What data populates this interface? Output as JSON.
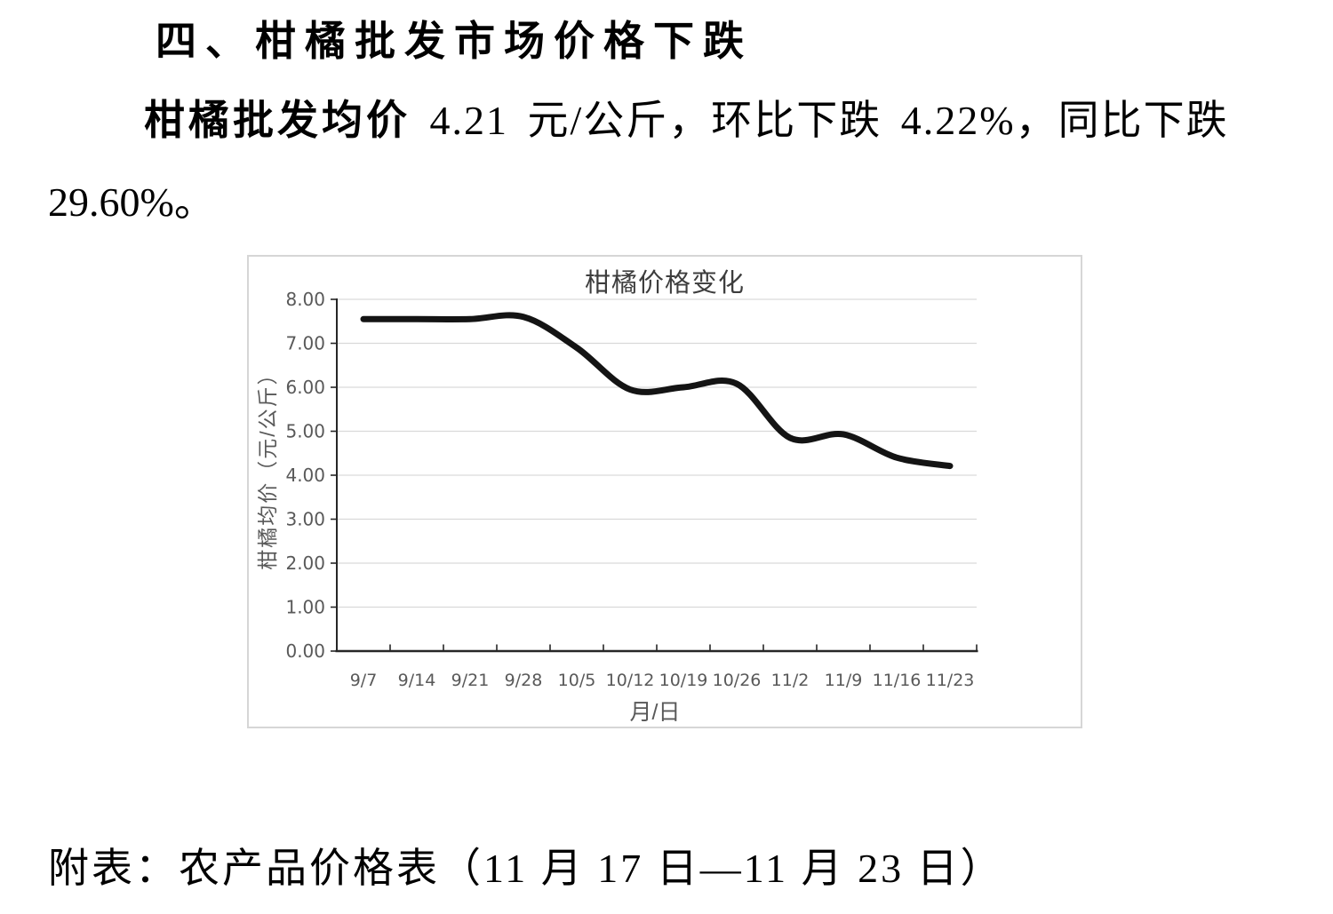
{
  "document": {
    "heading": "四、柑橘批发市场价格下跌",
    "paragraph_bold": "柑橘批发均价",
    "paragraph_rest": " 4.21 元/公斤，环比下跌 4.22%，同比下跌",
    "paragraph_line2": "29.60%。",
    "footer_note": "附表：农产品价格表（11 月 17 日—11 月 23 日）"
  },
  "chart_data": {
    "type": "line",
    "title": "柑橘价格变化",
    "xlabel": "月/日",
    "ylabel": "柑橘均价（元/公斤）",
    "categories": [
      "9/7",
      "9/14",
      "9/21",
      "9/28",
      "10/5",
      "10/12",
      "10/19",
      "10/26",
      "11/2",
      "11/9",
      "11/16",
      "11/23"
    ],
    "series": [
      {
        "name": "柑橘均价",
        "values": [
          7.55,
          7.55,
          7.55,
          7.6,
          6.9,
          5.95,
          6.0,
          6.08,
          4.85,
          4.93,
          4.4,
          4.21
        ]
      }
    ],
    "ylim": [
      0,
      8
    ],
    "ytick_step": 1,
    "ytick_decimals": 2,
    "grid": true,
    "smooth": true,
    "legend_position": "none",
    "line_color": "#141414",
    "line_width": 7,
    "grid_color": "#d9d9d9",
    "axis_color": "#262626",
    "tick_label_color": "#595959",
    "title_color": "#3d3d3d"
  }
}
